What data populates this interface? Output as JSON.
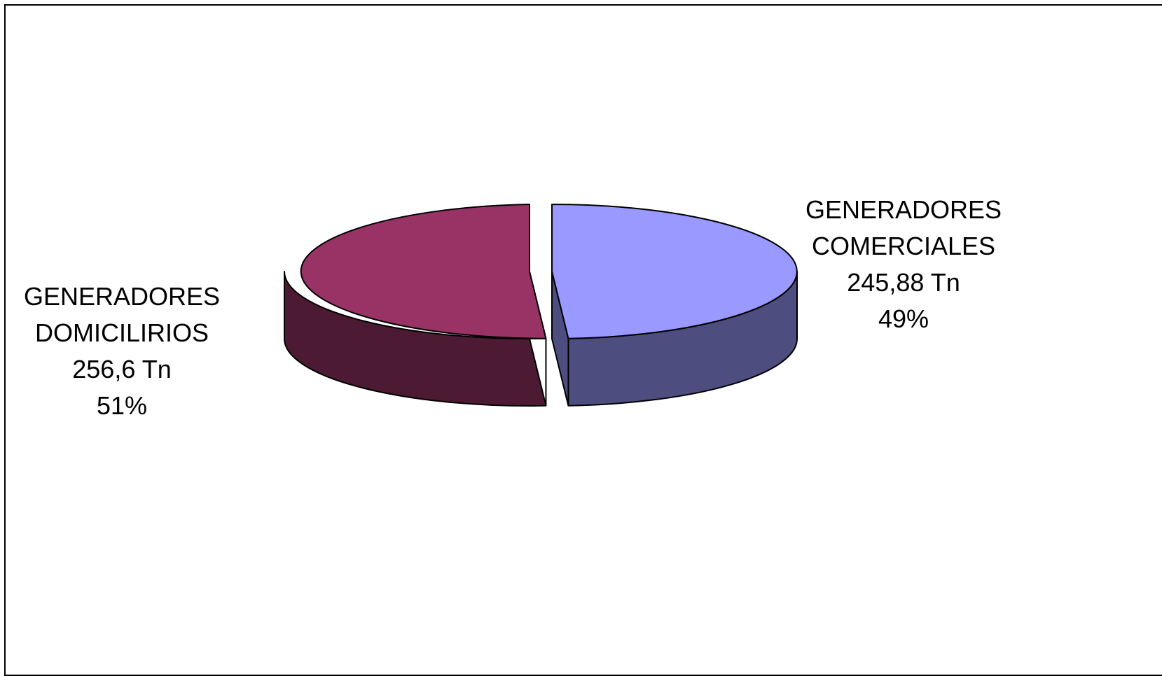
{
  "chart_data": {
    "type": "pie",
    "style": "3d-exploded",
    "slices": [
      {
        "name": "GENERADORES DOMICILIRIOS",
        "label_line1": "GENERADORES",
        "label_line2": "DOMICILIRIOS",
        "value": 256.6,
        "value_label": "256,6 Tn",
        "percent": 51,
        "percent_label": "51%",
        "color_top": "#993366",
        "color_side": "#4d1a33"
      },
      {
        "name": "GENERADORES COMERCIALES",
        "label_line1": "GENERADORES",
        "label_line2": "COMERCIALES",
        "value": 245.88,
        "value_label": "245,88 Tn",
        "percent": 49,
        "percent_label": "49%",
        "color_top": "#9999ff",
        "color_side": "#4d4d80"
      }
    ],
    "legend": "none",
    "border": true
  }
}
